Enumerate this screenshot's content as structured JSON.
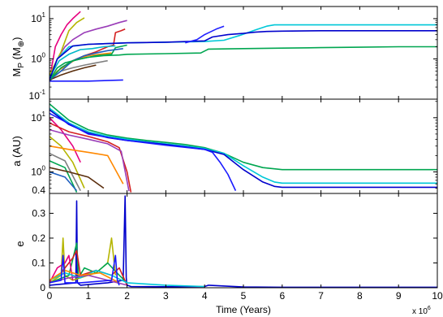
{
  "chart_data": [
    {
      "type": "line",
      "panel": "top",
      "ylabel_main": "M",
      "ylabel_sub": "P",
      "ylabel_unit_open": " (M",
      "ylabel_unit_sub": "⊕",
      "ylabel_unit_close": ")",
      "yscale": "log",
      "ylim": [
        0.1,
        20
      ],
      "xlim": [
        0,
        10
      ],
      "yticks": [
        {
          "label_base": "10",
          "label_exp": "-1",
          "value": 0.1
        },
        {
          "label_base": "10",
          "label_exp": "0",
          "value": 1
        },
        {
          "label_base": "10",
          "label_exp": "1",
          "value": 10
        }
      ],
      "series": [
        {
          "color": "#e6007e",
          "x": [
            0.0,
            0.15,
            0.3,
            0.45,
            0.6,
            0.8
          ],
          "y": [
            0.3,
            2.0,
            4.0,
            7.0,
            10.0,
            15.0
          ]
        },
        {
          "color": "#9a3db8",
          "x": [
            0.0,
            0.2,
            0.4,
            0.6,
            0.9,
            1.2,
            1.5,
            1.8,
            2.0
          ],
          "y": [
            0.3,
            1.0,
            2.0,
            3.0,
            4.5,
            5.5,
            6.5,
            8.0,
            9.0
          ]
        },
        {
          "color": "#b5b500",
          "x": [
            0.0,
            0.3,
            0.5,
            0.7,
            0.9
          ],
          "y": [
            0.4,
            1.5,
            5.0,
            8.0,
            10.5
          ]
        },
        {
          "color": "#d42020",
          "x": [
            0.0,
            0.3,
            0.6,
            0.9,
            1.2,
            1.5,
            1.65,
            1.7,
            1.85,
            1.95
          ],
          "y": [
            0.3,
            0.6,
            0.9,
            1.2,
            1.5,
            2.0,
            2.2,
            4.5,
            5.0,
            5.5
          ]
        },
        {
          "color": "#00b8c8",
          "x": [
            0.0,
            0.25,
            0.5,
            0.8,
            1.1,
            1.4,
            1.7
          ],
          "y": [
            0.35,
            0.9,
            1.3,
            1.7,
            1.8,
            2.0,
            2.1
          ]
        },
        {
          "color": "#ff8800",
          "x": [
            0.0,
            0.2,
            0.45,
            0.7,
            1.0,
            1.3,
            1.6
          ],
          "y": [
            0.3,
            0.5,
            0.7,
            1.0,
            1.2,
            1.3,
            1.4
          ]
        },
        {
          "color": "#7f7f7f",
          "x": [
            0.0,
            0.3,
            0.6,
            0.9,
            1.2,
            1.5
          ],
          "y": [
            0.3,
            0.5,
            0.6,
            0.7,
            0.8,
            0.9
          ]
        },
        {
          "color": "#00a650",
          "x": [
            0.0,
            0.2,
            0.4,
            0.8,
            1.2,
            1.6,
            1.7,
            2.0
          ],
          "y": [
            0.3,
            0.6,
            0.8,
            1.0,
            1.2,
            1.3,
            1.9,
            2.2
          ]
        },
        {
          "color": "#5a2d0c",
          "x": [
            0.0,
            0.3,
            0.6,
            0.9,
            1.2
          ],
          "y": [
            0.3,
            0.4,
            0.5,
            0.6,
            0.7
          ]
        },
        {
          "color": "#1f5fbf",
          "x": [
            0.0,
            0.3,
            0.6,
            0.9,
            1.2,
            1.5,
            1.9
          ],
          "y": [
            0.3,
            0.5,
            0.9,
            1.2,
            1.4,
            1.6,
            1.8
          ]
        },
        {
          "color": "#1a1aff",
          "x": [
            0.0,
            1.0,
            1.9
          ],
          "y": [
            0.28,
            0.28,
            0.3
          ]
        },
        {
          "color": "#00a650",
          "x": [
            0.0,
            0.3,
            0.6,
            1.0,
            1.4,
            1.8,
            2.0,
            3.0,
            3.9,
            4.1,
            5.0,
            6.0,
            7.0,
            8.0,
            9.0,
            10.0
          ],
          "y": [
            0.3,
            0.6,
            0.9,
            1.1,
            1.2,
            1.25,
            1.3,
            1.35,
            1.4,
            1.75,
            1.8,
            1.85,
            1.9,
            1.95,
            2.0,
            2.0
          ]
        },
        {
          "color": "#00c8d8",
          "x": [
            0.0,
            0.2,
            0.5,
            1.0,
            2.0,
            3.0,
            4.0,
            4.5,
            4.9,
            5.3,
            5.6,
            5.8,
            7.0,
            8.0,
            9.0,
            10.0
          ],
          "y": [
            0.3,
            1.0,
            2.0,
            2.3,
            2.5,
            2.6,
            2.7,
            2.9,
            3.8,
            5.2,
            6.5,
            7.0,
            7.0,
            7.0,
            7.0,
            7.0
          ]
        },
        {
          "color": "#0000cc",
          "x": [
            0.0,
            0.2,
            0.6,
            1.0,
            2.0,
            3.0,
            4.0,
            4.2,
            4.6,
            5.0,
            5.3,
            5.6,
            6.0,
            7.0,
            8.0,
            9.0,
            10.0
          ],
          "y": [
            0.3,
            1.0,
            2.1,
            2.3,
            2.5,
            2.6,
            2.8,
            3.5,
            4.0,
            4.3,
            4.6,
            4.8,
            4.9,
            5.0,
            5.0,
            5.0,
            5.0
          ]
        },
        {
          "color": "#2222ff",
          "x": [
            3.5,
            3.8,
            4.0,
            4.3,
            4.5
          ],
          "y": [
            2.5,
            3.0,
            4.0,
            5.5,
            6.5
          ]
        }
      ]
    },
    {
      "type": "line",
      "panel": "middle",
      "ylabel": "a (AU)",
      "yscale": "log",
      "ylim": [
        0.4,
        22
      ],
      "xlim": [
        0,
        10
      ],
      "yticks": [
        {
          "label_base": "10",
          "label_exp": "1",
          "value": 10
        },
        {
          "label_base": "10",
          "label_exp": "0",
          "value": 1
        },
        {
          "label": "0.4",
          "value": 0.4
        }
      ],
      "series": [
        {
          "color": "#00a650",
          "x": [
            0.0,
            0.5,
            1.0,
            1.5,
            2.0,
            2.5,
            3.0,
            3.5,
            4.0,
            4.5,
            5.0,
            5.5,
            6.0,
            7.0,
            8.0,
            9.0,
            10.0
          ],
          "y": [
            18.0,
            9.0,
            6.0,
            4.8,
            4.2,
            3.8,
            3.5,
            3.2,
            2.8,
            2.2,
            1.5,
            1.2,
            1.1,
            1.1,
            1.1,
            1.1,
            1.1
          ]
        },
        {
          "color": "#00c8d8",
          "x": [
            0.0,
            0.5,
            1.0,
            1.5,
            2.0,
            2.5,
            3.0,
            3.5,
            4.0,
            4.5,
            5.0,
            5.5,
            5.8,
            6.0,
            7.0,
            8.0,
            9.0,
            10.0
          ],
          "y": [
            15.0,
            8.0,
            5.5,
            4.5,
            4.0,
            3.6,
            3.3,
            3.0,
            2.7,
            2.2,
            1.3,
            0.8,
            0.65,
            0.62,
            0.62,
            0.62,
            0.62,
            0.62
          ]
        },
        {
          "color": "#0000cc",
          "x": [
            0.0,
            0.5,
            1.0,
            1.5,
            2.0,
            2.5,
            3.0,
            3.5,
            4.0,
            4.5,
            5.0,
            5.5,
            5.8,
            6.0,
            7.0,
            8.0,
            9.0,
            10.0
          ],
          "y": [
            14.0,
            7.5,
            5.2,
            4.3,
            3.8,
            3.5,
            3.2,
            2.9,
            2.6,
            2.1,
            1.1,
            0.65,
            0.54,
            0.52,
            0.52,
            0.52,
            0.52,
            0.52
          ]
        },
        {
          "color": "#1a1aff",
          "x": [
            0.0,
            1.0,
            2.0,
            3.0,
            4.0,
            4.2,
            4.4,
            4.6,
            4.8
          ],
          "y": [
            12.0,
            5.0,
            3.8,
            3.1,
            2.6,
            2.3,
            1.5,
            0.9,
            0.45
          ]
        },
        {
          "color": "#e6007e",
          "x": [
            0.0,
            0.3,
            0.6,
            0.8
          ],
          "y": [
            10.0,
            6.0,
            3.0,
            1.5
          ]
        },
        {
          "color": "#d42020",
          "x": [
            0.0,
            0.5,
            1.0,
            1.5,
            1.8,
            2.0,
            2.1
          ],
          "y": [
            8.0,
            5.5,
            4.5,
            3.6,
            2.8,
            1.0,
            0.42
          ]
        },
        {
          "color": "#9a3db8",
          "x": [
            0.0,
            0.5,
            1.0,
            1.5,
            1.85,
            2.05
          ],
          "y": [
            6.0,
            4.8,
            4.0,
            3.3,
            2.4,
            0.44
          ]
        },
        {
          "color": "#b5b500",
          "x": [
            0.0,
            0.3,
            0.6,
            0.9
          ],
          "y": [
            4.5,
            3.0,
            1.5,
            0.5
          ]
        },
        {
          "color": "#ff8800",
          "x": [
            0.0,
            0.5,
            1.0,
            1.5,
            1.9
          ],
          "y": [
            3.0,
            2.6,
            2.3,
            2.0,
            0.6
          ]
        },
        {
          "color": "#7f7f7f",
          "x": [
            0.0,
            0.4,
            0.8
          ],
          "y": [
            2.2,
            1.6,
            0.45
          ]
        },
        {
          "color": "#00a650",
          "x": [
            0.0,
            0.4,
            0.7
          ],
          "y": [
            1.6,
            1.2,
            0.42
          ]
        },
        {
          "color": "#5a2d0c",
          "x": [
            0.0,
            0.5,
            1.0,
            1.4
          ],
          "y": [
            1.2,
            1.0,
            0.8,
            0.5
          ]
        },
        {
          "color": "#1f5fbf",
          "x": [
            0.0,
            0.4,
            0.7
          ],
          "y": [
            1.0,
            0.8,
            0.45
          ]
        }
      ]
    },
    {
      "type": "line",
      "panel": "bottom",
      "ylabel": "e",
      "yscale": "linear",
      "ylim": [
        0,
        0.38
      ],
      "xlim": [
        0,
        10
      ],
      "xlabel": "Time (Years)",
      "x_multiplier_base": "x 10",
      "x_multiplier_exp": "6",
      "xticks": [
        "0",
        "1",
        "2",
        "3",
        "4",
        "5",
        "6",
        "7",
        "8",
        "9",
        "10"
      ],
      "yticks": [
        "0",
        "0.1",
        "0.2",
        "0.3"
      ],
      "series": [
        {
          "color": "#0000cc",
          "x": [
            0.0,
            0.68,
            0.7,
            0.72,
            0.8,
            1.5,
            1.9,
            1.95,
            1.98,
            2.0,
            2.1,
            3.0,
            4.0,
            4.1,
            5.0,
            6.0,
            7.0,
            8.0,
            9.0,
            10.0
          ],
          "y": [
            0.01,
            0.02,
            0.35,
            0.02,
            0.01,
            0.02,
            0.03,
            0.37,
            0.04,
            0.01,
            0.005,
            0.004,
            0.005,
            0.01,
            0.003,
            0.002,
            0.002,
            0.002,
            0.002,
            0.002
          ]
        },
        {
          "color": "#b5b500",
          "x": [
            0.0,
            0.3,
            0.35,
            0.4,
            0.6,
            1.0,
            1.2,
            1.5,
            1.6,
            1.7
          ],
          "y": [
            0.02,
            0.05,
            0.2,
            0.05,
            0.03,
            0.05,
            0.06,
            0.1,
            0.2,
            0.05
          ]
        },
        {
          "color": "#00a650",
          "x": [
            0.0,
            0.5,
            0.7,
            0.75,
            0.9,
            1.2,
            1.5,
            1.8,
            2.0
          ],
          "y": [
            0.02,
            0.05,
            0.18,
            0.04,
            0.08,
            0.06,
            0.1,
            0.05,
            0.02
          ]
        },
        {
          "color": "#d42020",
          "x": [
            0.0,
            0.3,
            0.6,
            0.7,
            0.8,
            1.2,
            1.6,
            1.8,
            2.0
          ],
          "y": [
            0.03,
            0.06,
            0.12,
            0.15,
            0.05,
            0.07,
            0.05,
            0.08,
            0.01
          ]
        },
        {
          "color": "#e6007e",
          "x": [
            0.0,
            0.2,
            0.4,
            0.5,
            0.6
          ],
          "y": [
            0.02,
            0.08,
            0.1,
            0.13,
            0.03
          ]
        },
        {
          "color": "#00c8d8",
          "x": [
            0.0,
            0.4,
            0.8,
            1.2,
            1.6,
            2.0,
            3.0,
            4.0
          ],
          "y": [
            0.03,
            0.06,
            0.04,
            0.07,
            0.05,
            0.02,
            0.01,
            0.005
          ]
        },
        {
          "color": "#9a3db8",
          "x": [
            0.0,
            0.5,
            1.0,
            1.5,
            2.0
          ],
          "y": [
            0.02,
            0.04,
            0.05,
            0.03,
            0.01
          ]
        },
        {
          "color": "#ff8800",
          "x": [
            0.0,
            0.4,
            0.8,
            1.3,
            1.8
          ],
          "y": [
            0.03,
            0.07,
            0.05,
            0.06,
            0.02
          ]
        },
        {
          "color": "#1a1aff",
          "x": [
            0.0,
            0.3,
            0.35,
            0.4,
            0.8,
            1.6,
            1.7,
            1.75,
            1.8
          ],
          "y": [
            0.02,
            0.03,
            0.13,
            0.02,
            0.02,
            0.03,
            0.13,
            0.03,
            0.01
          ]
        }
      ]
    }
  ]
}
